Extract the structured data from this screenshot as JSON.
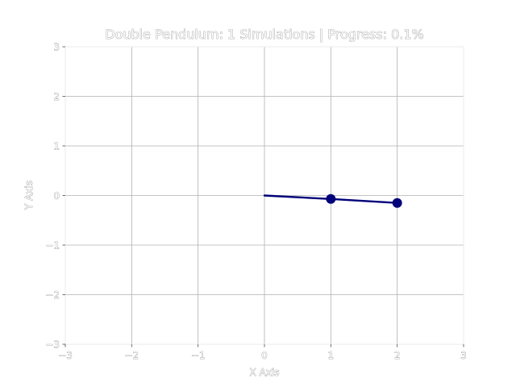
{
  "chart_data": {
    "type": "line",
    "title": "Double Pendulum: 1 Simulations | Progress: 0.1%",
    "xlabel": "X Axis",
    "ylabel": "Y Axis",
    "xlim": [
      -3,
      3
    ],
    "ylim": [
      -3,
      3
    ],
    "xticks": [
      -3,
      -2,
      -1,
      0,
      1,
      2,
      3
    ],
    "yticks": [
      -3,
      -2,
      -1,
      0,
      1,
      2,
      3
    ],
    "xtick_labels": [
      "−3",
      "−2",
      "−1",
      "0",
      "1",
      "2",
      "3"
    ],
    "ytick_labels": [
      "−3",
      "−2",
      "−1",
      "0",
      "1",
      "2",
      "3"
    ],
    "grid": true,
    "progress_percent": 0.1,
    "series": [
      {
        "color": "#00007a",
        "points": [
          {
            "x": 0,
            "y": 0
          },
          {
            "x": 1.0,
            "y": -0.07
          },
          {
            "x": 2.0,
            "y": -0.15
          }
        ],
        "bobs": [
          1,
          2
        ]
      }
    ]
  }
}
